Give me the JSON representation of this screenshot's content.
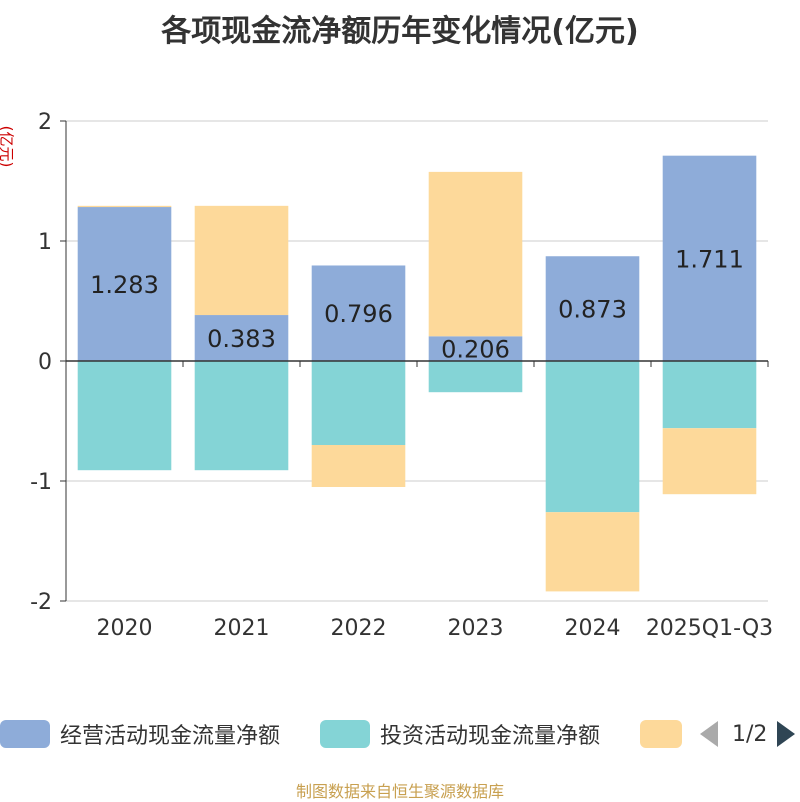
{
  "title": "各项现金流净额历年变化情况(亿元)",
  "unit_label": "(亿元)",
  "source": "制图数据来自恒生聚源数据库",
  "legend": {
    "items": [
      {
        "label": "经营活动现金流量净额",
        "color": "#8eacd9"
      },
      {
        "label": "投资活动现金流量净额",
        "color": "#84d4d6"
      },
      {
        "label": "",
        "color": "#fdd99a"
      }
    ],
    "page_text": "1/2"
  },
  "chart_data": {
    "type": "bar",
    "stacked": true,
    "categories": [
      "2020",
      "2021",
      "2022",
      "2023",
      "2024",
      "2025Q1-Q3"
    ],
    "ylim": [
      -2,
      2
    ],
    "yticks": [
      "2",
      "1",
      "0",
      "-1",
      "-2"
    ],
    "series": [
      {
        "name": "经营活动现金流量净额",
        "color": "#8eacd9",
        "values": [
          1.283,
          0.383,
          0.796,
          0.206,
          0.873,
          1.711
        ],
        "labels": [
          "1.283",
          "0.383",
          "0.796",
          "0.206",
          "0.873",
          "1.711"
        ]
      },
      {
        "name": "投资活动现金流量净额",
        "color": "#84d4d6",
        "values": [
          -0.91,
          -0.91,
          -0.7,
          -0.26,
          -1.26,
          -0.56
        ]
      },
      {
        "name": "",
        "color": "#fdd99a",
        "values": [
          0.01,
          0.91,
          -0.35,
          1.37,
          -0.66,
          -0.55
        ]
      }
    ]
  }
}
